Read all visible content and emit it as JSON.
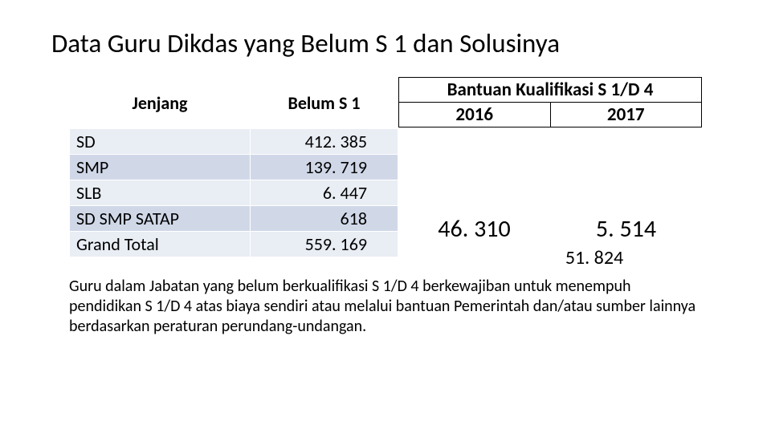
{
  "title": "Data Guru Dikdas yang Belum S 1 dan Solusinya",
  "table": {
    "headers": {
      "jenjang": "Jenjang",
      "belum": "Belum S 1"
    },
    "rows": [
      {
        "label": "SD",
        "value": "412. 385"
      },
      {
        "label": "SMP",
        "value": "139. 719"
      },
      {
        "label": "SLB",
        "value": "6. 447"
      },
      {
        "label": "SD SMP SATAP",
        "value": "618"
      },
      {
        "label": "Grand Total",
        "value": "559. 169"
      }
    ]
  },
  "aid": {
    "header": "Bantuan Kualifikasi S 1/D 4",
    "year_a": "2016",
    "year_b": "2017",
    "value_a": "46. 310",
    "value_b": "5. 514",
    "total": "51. 824"
  },
  "footnote": "Guru dalam Jabatan yang belum berkualifikasi S 1/D 4 berkewajiban untuk menempuh pendidikan S 1/D 4 atas biaya sendiri atau melalui bantuan Pemerintah dan/atau sumber lainnya berdasarkan peraturan perundang-undangan.",
  "style": {
    "band_a": "#e9edf4",
    "band_b": "#d0d8e8",
    "bg": "#ffffff",
    "text": "#000000"
  }
}
